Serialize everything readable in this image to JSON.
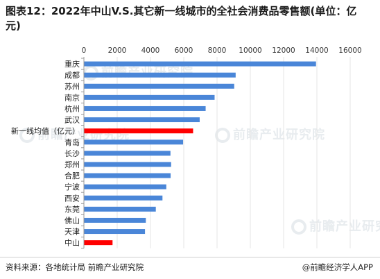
{
  "title": "图表12：2022年中山V.S.其它新一线城市的全社会消费品零售额(单位：亿元)",
  "source": "资料来源：各地统计局 前瞻产业研究院",
  "brand": "@前瞻经济学人APP",
  "watermark": "前瞻产业研究院",
  "colors": {
    "bar": "#4a86d8",
    "highlight": "#ff0000",
    "grid": "#e6e6e6"
  },
  "chart_data": {
    "type": "bar",
    "orientation": "horizontal",
    "categories": [
      "重庆",
      "成都",
      "苏州",
      "南京",
      "杭州",
      "武汉",
      "新一线均值（亿元）",
      "青岛",
      "长沙",
      "郑州",
      "合肥",
      "宁波",
      "西安",
      "东莞",
      "佛山",
      "天津",
      "中山"
    ],
    "values": [
      13926,
      9097,
      9010,
      7832,
      7294,
      6936,
      6540,
      5940,
      5180,
      5220,
      5190,
      4930,
      4700,
      4300,
      3700,
      3650,
      1700
    ],
    "highlight": [
      "新一线均值（亿元）",
      "中山"
    ],
    "xlim": [
      0,
      16000
    ],
    "xticks": [
      "0",
      "2000",
      "4000",
      "6000",
      "8000",
      "10000",
      "12000",
      "14000",
      "16000"
    ],
    "xlabel": "",
    "ylabel": "",
    "grid": true,
    "axis_position": "top"
  }
}
